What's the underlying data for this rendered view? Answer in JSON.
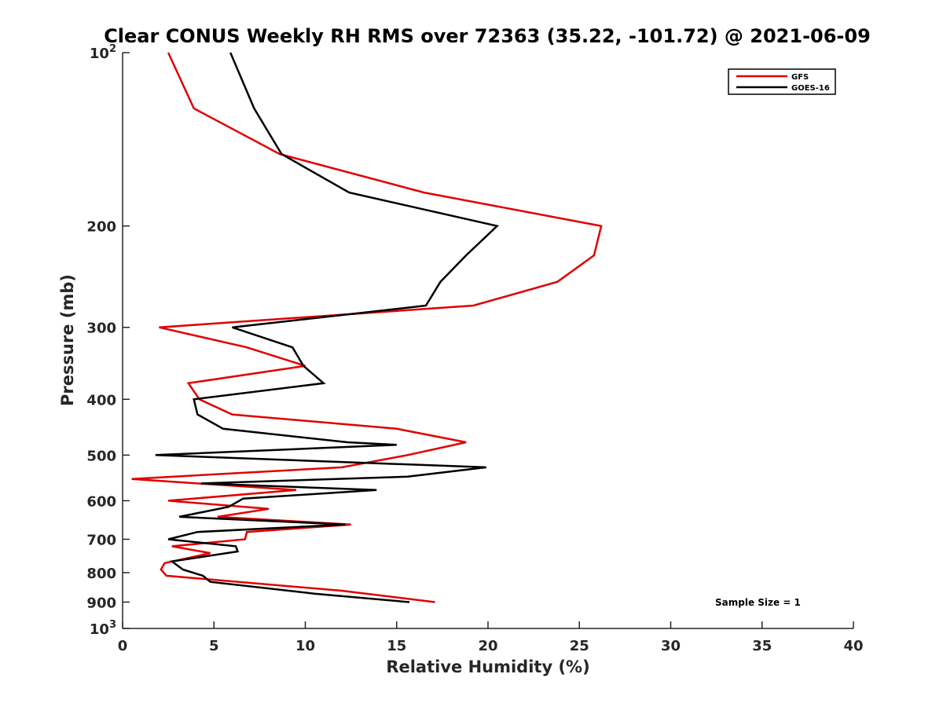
{
  "chart_data": {
    "type": "line",
    "title": "Clear CONUS Weekly RH RMS over 72363 (35.22, -101.72) @ 2021-06-09",
    "xlabel": "Relative Humidity (%)",
    "ylabel": "Pressure (mb)",
    "xlim": [
      0,
      40
    ],
    "ylim": [
      100,
      1000
    ],
    "y_scale": "log",
    "y_reversed": true,
    "x_ticks": [
      "0",
      "5",
      "10",
      "15",
      "20",
      "25",
      "30",
      "35",
      "40"
    ],
    "x_tick_values": [
      0,
      5,
      10,
      15,
      20,
      25,
      30,
      35,
      40
    ],
    "y_ticks": [
      {
        "value": 100,
        "base": "10",
        "exp": "2"
      },
      {
        "value": 200,
        "label": "200"
      },
      {
        "value": 300,
        "label": "300"
      },
      {
        "value": 400,
        "label": "400"
      },
      {
        "value": 500,
        "label": "500"
      },
      {
        "value": 600,
        "label": "600"
      },
      {
        "value": 700,
        "label": "700"
      },
      {
        "value": 800,
        "label": "800"
      },
      {
        "value": 900,
        "label": "900"
      },
      {
        "value": 1000,
        "base": "10",
        "exp": "3"
      }
    ],
    "legend_position": "top-right",
    "annotation": "Sample Size = 1",
    "series": [
      {
        "name": "GFS",
        "color": "#e00000",
        "points": [
          [
            2.5,
            100
          ],
          [
            3.9,
            125
          ],
          [
            8.6,
            150
          ],
          [
            16.5,
            175
          ],
          [
            26.2,
            200
          ],
          [
            25.8,
            225
          ],
          [
            23.8,
            250
          ],
          [
            19.2,
            275
          ],
          [
            2.0,
            300
          ],
          [
            6.8,
            325
          ],
          [
            10.0,
            350
          ],
          [
            3.6,
            375
          ],
          [
            4.2,
            400
          ],
          [
            6.0,
            425
          ],
          [
            15.0,
            450
          ],
          [
            18.8,
            475
          ],
          [
            15.6,
            500
          ],
          [
            12.0,
            525
          ],
          [
            0.5,
            550
          ],
          [
            9.5,
            575
          ],
          [
            2.5,
            600
          ],
          [
            8.0,
            620
          ],
          [
            5.2,
            640
          ],
          [
            12.5,
            660
          ],
          [
            6.8,
            680
          ],
          [
            6.7,
            700
          ],
          [
            2.7,
            720
          ],
          [
            4.8,
            740
          ],
          [
            2.3,
            770
          ],
          [
            2.1,
            790
          ],
          [
            2.4,
            810
          ],
          [
            12.0,
            860
          ],
          [
            17.1,
            900
          ]
        ]
      },
      {
        "name": "GOES-16",
        "color": "#000000",
        "points": [
          [
            5.9,
            100
          ],
          [
            7.2,
            125
          ],
          [
            8.7,
            150
          ],
          [
            12.4,
            175
          ],
          [
            20.5,
            200
          ],
          [
            18.8,
            225
          ],
          [
            17.4,
            250
          ],
          [
            16.6,
            275
          ],
          [
            6.0,
            300
          ],
          [
            9.3,
            325
          ],
          [
            9.9,
            350
          ],
          [
            11.0,
            375
          ],
          [
            3.9,
            400
          ],
          [
            4.1,
            425
          ],
          [
            5.5,
            450
          ],
          [
            12.3,
            475
          ],
          [
            15.0,
            480
          ],
          [
            1.8,
            500
          ],
          [
            19.9,
            525
          ],
          [
            15.6,
            545
          ],
          [
            4.3,
            560
          ],
          [
            13.9,
            575
          ],
          [
            6.6,
            595
          ],
          [
            5.8,
            615
          ],
          [
            3.1,
            640
          ],
          [
            12.2,
            660
          ],
          [
            4.1,
            680
          ],
          [
            2.5,
            700
          ],
          [
            6.2,
            720
          ],
          [
            6.3,
            735
          ],
          [
            2.7,
            765
          ],
          [
            3.3,
            790
          ],
          [
            4.4,
            810
          ],
          [
            4.8,
            830
          ],
          [
            10.5,
            870
          ],
          [
            15.7,
            900
          ]
        ]
      }
    ]
  }
}
